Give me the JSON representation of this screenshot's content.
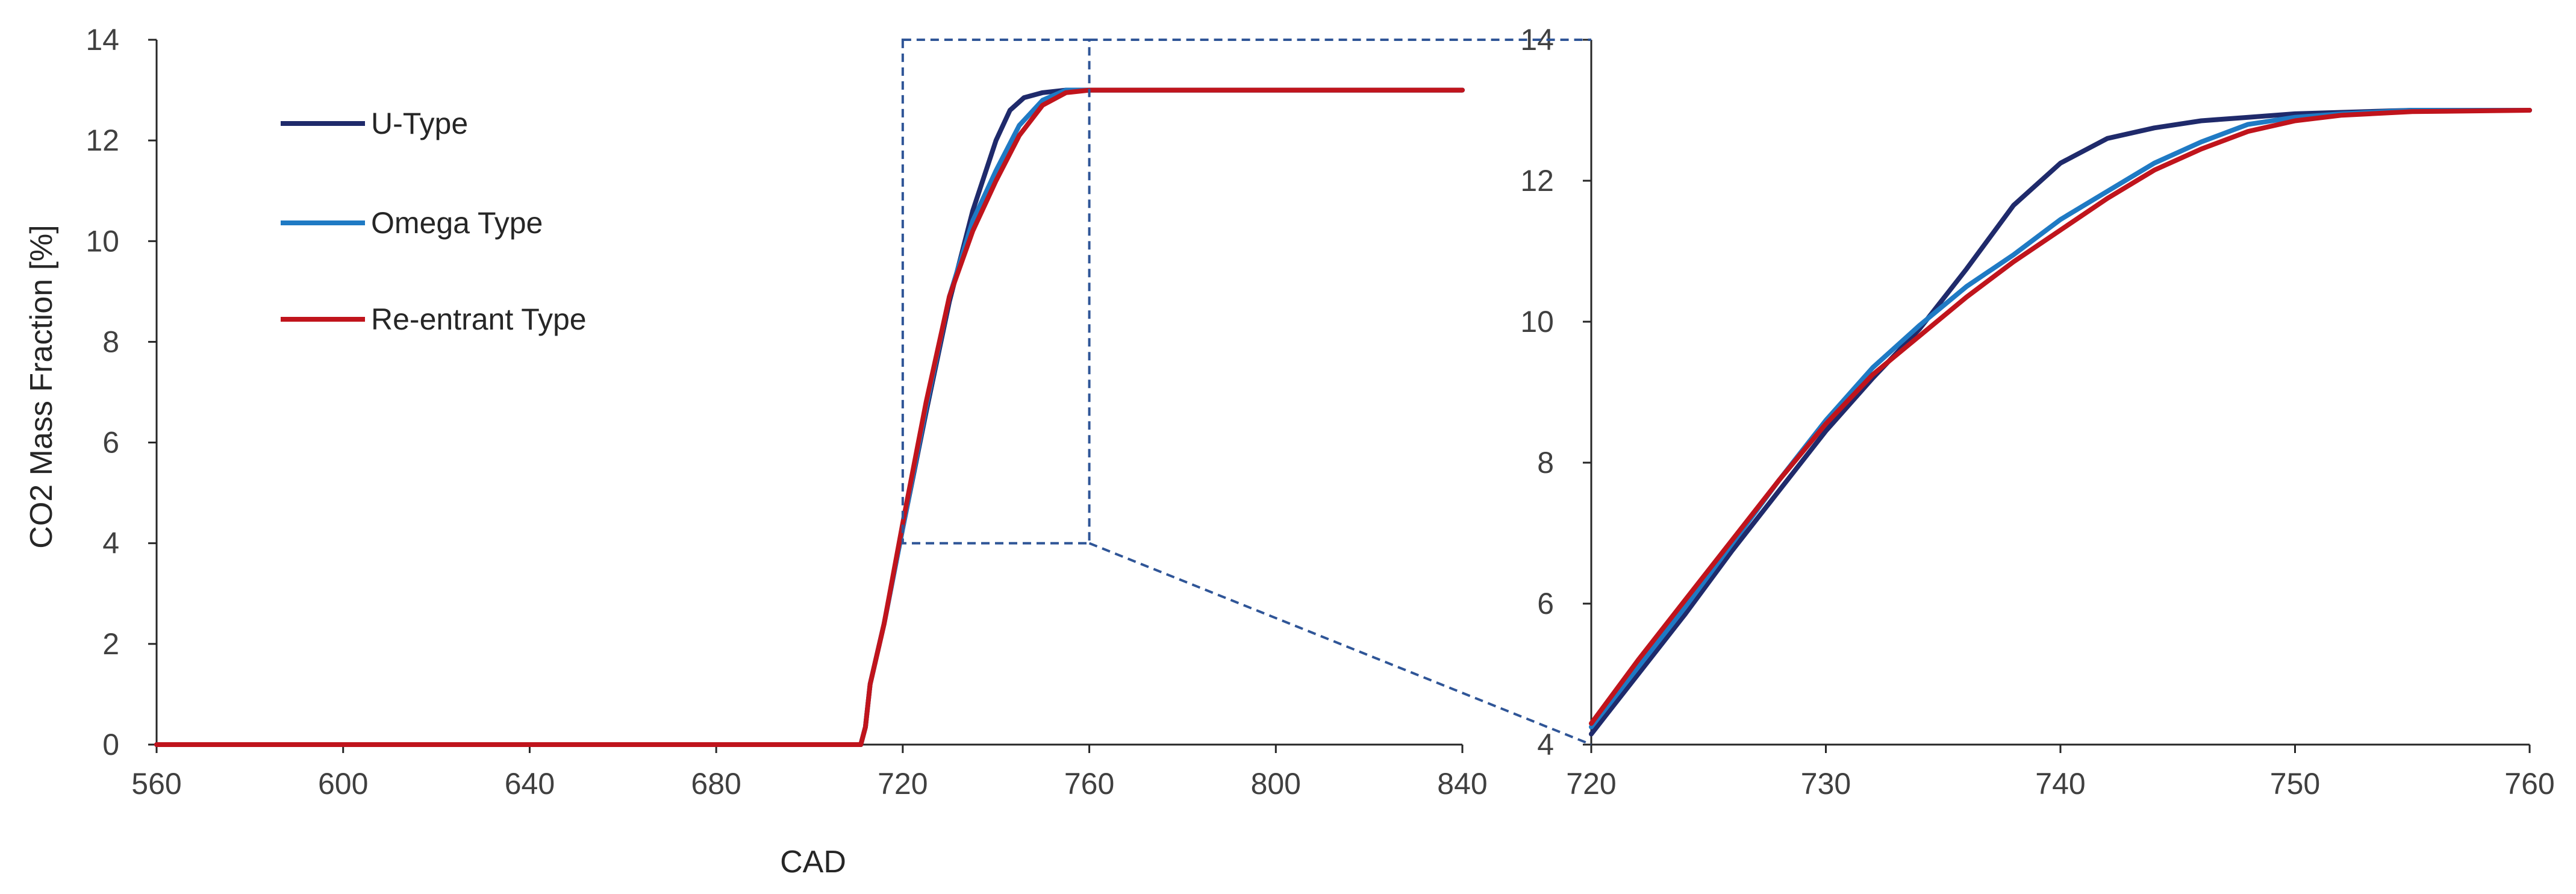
{
  "chart_data": [
    {
      "type": "line",
      "title": "",
      "xlabel": "CAD",
      "ylabel": "CO2 Mass Fraction [%]",
      "xlim": [
        560,
        840
      ],
      "ylim": [
        0,
        14
      ],
      "x_ticks": [
        "560",
        "600",
        "640",
        "680",
        "720",
        "760",
        "800",
        "840"
      ],
      "y_ticks": [
        "0",
        "2",
        "4",
        "6",
        "8",
        "10",
        "12",
        "14"
      ],
      "grid": false,
      "legend": "upper-left",
      "series": [
        {
          "name": "U-Type",
          "color": "#1F2A6B",
          "x": [
            560,
            711,
            712,
            713,
            716,
            720,
            725,
            730,
            735,
            740,
            743,
            746,
            750,
            755,
            760,
            840
          ],
          "y": [
            0,
            0,
            0.35,
            1.2,
            2.4,
            4.3,
            6.6,
            8.8,
            10.6,
            12.0,
            12.6,
            12.85,
            12.95,
            13.0,
            13.0,
            13.0
          ]
        },
        {
          "name": "Omega Type",
          "color": "#1F7AC4",
          "x": [
            560,
            711,
            712,
            713,
            716,
            720,
            725,
            730,
            735,
            740,
            745,
            750,
            755,
            760,
            840
          ],
          "y": [
            0,
            0,
            0.35,
            1.2,
            2.4,
            4.3,
            6.7,
            8.9,
            10.4,
            11.4,
            12.3,
            12.8,
            13.0,
            13.0,
            13.0
          ]
        },
        {
          "name": "Re-entrant Type",
          "color": "#C0141C",
          "x": [
            560,
            711,
            712,
            713,
            716,
            720,
            725,
            730,
            735,
            740,
            745,
            750,
            755,
            760,
            840
          ],
          "y": [
            0,
            0,
            0.35,
            1.2,
            2.4,
            4.4,
            6.8,
            8.9,
            10.2,
            11.2,
            12.1,
            12.7,
            12.95,
            13.0,
            13.0
          ]
        }
      ]
    },
    {
      "type": "line",
      "title": "",
      "xlabel": "",
      "ylabel": "",
      "xlim": [
        720,
        760
      ],
      "ylim": [
        4,
        14
      ],
      "x_ticks": [
        "720",
        "730",
        "740",
        "750",
        "760"
      ],
      "y_ticks": [
        "4",
        "6",
        "8",
        "10",
        "12",
        "14"
      ],
      "grid": false,
      "series": [
        {
          "color": "#1F2A6B",
          "x": [
            720,
            722,
            724,
            726,
            728,
            730,
            732,
            734,
            736,
            738,
            740,
            742,
            744,
            746,
            748,
            750,
            752,
            755,
            760
          ],
          "y": [
            4.15,
            5.0,
            5.85,
            6.75,
            7.6,
            8.45,
            9.2,
            9.9,
            10.75,
            11.65,
            12.25,
            12.6,
            12.75,
            12.85,
            12.9,
            12.95,
            12.97,
            13.0,
            13.0
          ]
        },
        {
          "color": "#1F7AC4",
          "x": [
            720,
            722,
            724,
            726,
            728,
            730,
            732,
            734,
            736,
            738,
            740,
            742,
            744,
            746,
            748,
            750,
            752,
            755,
            760
          ],
          "y": [
            4.25,
            5.1,
            5.95,
            6.85,
            7.75,
            8.6,
            9.35,
            9.95,
            10.5,
            10.95,
            11.45,
            11.85,
            12.25,
            12.55,
            12.8,
            12.9,
            12.95,
            13.0,
            13.0
          ]
        },
        {
          "color": "#C0141C",
          "x": [
            720,
            722,
            724,
            726,
            728,
            730,
            732,
            734,
            736,
            738,
            740,
            742,
            744,
            746,
            748,
            750,
            752,
            755,
            760
          ],
          "y": [
            4.3,
            5.2,
            6.05,
            6.9,
            7.75,
            8.55,
            9.25,
            9.8,
            10.35,
            10.85,
            11.3,
            11.75,
            12.15,
            12.45,
            12.7,
            12.85,
            12.93,
            12.98,
            13.0
          ]
        }
      ]
    }
  ]
}
